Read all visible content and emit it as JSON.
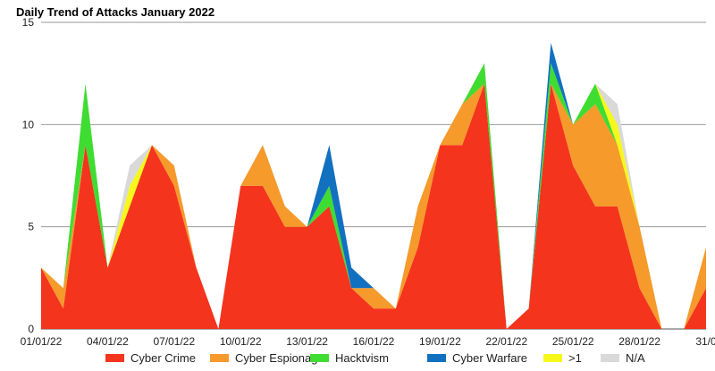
{
  "chart_data": {
    "type": "area",
    "stacked": true,
    "title": "Daily Trend of Attacks January 2022",
    "xlabel": "",
    "ylabel": "",
    "ylim": [
      0,
      15
    ],
    "yticks": [
      0,
      5,
      10,
      15
    ],
    "grid": true,
    "legend_position": "bottom",
    "x": [
      "01/01/22",
      "02/01/22",
      "03/01/22",
      "04/01/22",
      "05/01/22",
      "06/01/22",
      "07/01/22",
      "08/01/22",
      "09/01/22",
      "10/01/22",
      "11/01/22",
      "12/01/22",
      "13/01/22",
      "14/01/22",
      "15/01/22",
      "16/01/22",
      "17/01/22",
      "18/01/22",
      "19/01/22",
      "20/01/22",
      "21/01/22",
      "22/01/22",
      "23/01/22",
      "24/01/22",
      "25/01/22",
      "26/01/22",
      "27/01/22",
      "28/01/22",
      "29/01/22",
      "30/01/22",
      "31/01/22"
    ],
    "x_tick_labels": [
      "01/01/22",
      "04/01/22",
      "07/01/22",
      "10/01/22",
      "13/01/22",
      "16/01/22",
      "19/01/22",
      "22/01/22",
      "25/01/22",
      "28/01/22",
      "31/0"
    ],
    "series": [
      {
        "name": "Cyber Crime",
        "color": "#f5341d",
        "values": [
          3,
          1,
          9,
          3,
          6,
          9,
          7,
          3,
          0,
          7,
          7,
          5,
          5,
          6,
          2,
          1,
          1,
          4,
          9,
          9,
          12,
          0,
          1,
          12,
          8,
          6,
          6,
          2,
          0,
          0,
          2
        ]
      },
      {
        "name": "Cyber Espionage",
        "color": "#f59a2b",
        "values": [
          0,
          1,
          0,
          0,
          0,
          0,
          1,
          0,
          0,
          0,
          2,
          1,
          0,
          0,
          0,
          1,
          0,
          2,
          0,
          2,
          0,
          0,
          0,
          0,
          2,
          5,
          3,
          3,
          0,
          0,
          2
        ]
      },
      {
        "name": "Hacktvism",
        "color": "#3fdc32",
        "values": [
          0,
          0,
          3,
          0,
          0,
          0,
          0,
          0,
          0,
          0,
          0,
          0,
          0,
          1,
          0,
          0,
          0,
          0,
          0,
          0,
          1,
          0,
          0,
          1,
          0,
          1,
          0,
          0,
          0,
          0,
          0
        ]
      },
      {
        "name": "Cyber Warfare",
        "color": "#1270c0",
        "values": [
          0,
          0,
          0,
          0,
          0,
          0,
          0,
          0,
          0,
          0,
          0,
          0,
          0,
          2,
          1,
          0,
          0,
          0,
          0,
          0,
          0,
          0,
          0,
          1,
          0,
          0,
          0,
          0,
          0,
          0,
          0
        ]
      },
      {
        "name": ">1",
        "color": "#f6f71a",
        "values": [
          0,
          0,
          0,
          0,
          1,
          0,
          0,
          0,
          0,
          0,
          0,
          0,
          0,
          0,
          0,
          0,
          0,
          0,
          0,
          0,
          0,
          0,
          0,
          0,
          0,
          0,
          1,
          0,
          0,
          0,
          0
        ]
      },
      {
        "name": "N/A",
        "color": "#d9d9d9",
        "values": [
          0,
          0,
          0,
          0,
          1,
          0,
          0,
          0,
          0,
          0,
          0,
          0,
          0,
          0,
          0,
          0,
          0,
          0,
          0,
          0,
          0,
          0,
          0,
          0,
          0,
          0,
          1,
          0,
          0,
          0,
          0
        ]
      }
    ]
  }
}
